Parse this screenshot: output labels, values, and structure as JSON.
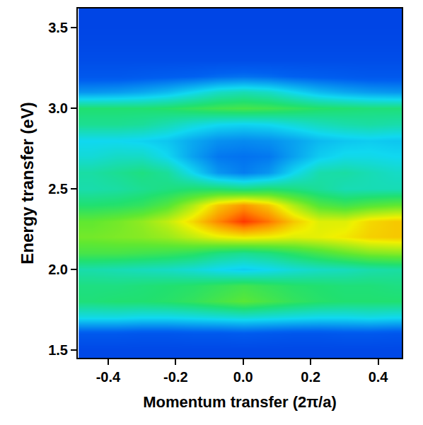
{
  "chart_data": {
    "type": "heatmap",
    "x_label": "Momentum transfer (2π/a)",
    "y_label": "Energy transfer (eV)",
    "x": [
      -0.45,
      -0.375,
      -0.3,
      -0.225,
      -0.15,
      -0.075,
      0,
      0.075,
      0.15,
      0.225,
      0.3,
      0.375,
      0.45
    ],
    "y": [
      1.5,
      1.6,
      1.7,
      1.8,
      1.9,
      2.0,
      2.1,
      2.2,
      2.3,
      2.4,
      2.5,
      2.6,
      2.7,
      2.8,
      2.9,
      3.0,
      3.1,
      3.2,
      3.3,
      3.4,
      3.5,
      3.6
    ],
    "z": [
      [
        0.6,
        0.6,
        0.6,
        0.6,
        0.6,
        0.6,
        0.6,
        0.6,
        0.6,
        0.6,
        0.6,
        0.6,
        0.6
      ],
      [
        1.2,
        1.2,
        1.1,
        1.1,
        1.2,
        1.2,
        1.3,
        1.2,
        1.1,
        1.1,
        1.2,
        1.2,
        1.1
      ],
      [
        3.6,
        3.6,
        3.5,
        3.5,
        3.6,
        3.7,
        3.8,
        3.7,
        3.6,
        3.5,
        3.5,
        3.6,
        3.5
      ],
      [
        4.9,
        5.0,
        5.0,
        5.1,
        5.3,
        5.6,
        5.9,
        5.6,
        5.3,
        5.1,
        5.0,
        5.0,
        5.0
      ],
      [
        4.8,
        4.8,
        4.9,
        5.0,
        5.1,
        5.3,
        5.5,
        5.3,
        5.1,
        5.0,
        4.9,
        4.9,
        4.8
      ],
      [
        4.3,
        4.2,
        4.1,
        4.0,
        3.8,
        3.5,
        3.3,
        3.5,
        3.8,
        4.0,
        4.1,
        4.3,
        4.4
      ],
      [
        5.6,
        5.6,
        5.5,
        5.4,
        5.2,
        4.8,
        4.6,
        4.8,
        5.2,
        5.6,
        6.0,
        6.3,
        6.4
      ],
      [
        6.2,
        6.3,
        6.4,
        6.6,
        7.0,
        7.4,
        7.6,
        7.5,
        7.3,
        7.4,
        7.6,
        7.9,
        8.0
      ],
      [
        6.0,
        6.2,
        6.5,
        7.0,
        7.8,
        8.8,
        9.6,
        9.0,
        8.0,
        7.3,
        7.3,
        7.8,
        8.0
      ],
      [
        5.0,
        5.1,
        5.3,
        5.8,
        6.8,
        8.0,
        8.6,
        8.0,
        6.8,
        5.8,
        5.5,
        5.8,
        6.0
      ],
      [
        4.3,
        4.4,
        4.6,
        4.8,
        5.0,
        5.0,
        4.8,
        5.0,
        4.8,
        4.5,
        4.2,
        4.2,
        4.2
      ],
      [
        4.4,
        4.6,
        4.8,
        4.5,
        3.5,
        2.4,
        2.0,
        2.4,
        3.5,
        4.3,
        4.4,
        4.2,
        4.0
      ],
      [
        3.8,
        4.0,
        4.0,
        3.5,
        2.6,
        1.9,
        1.8,
        1.9,
        2.6,
        3.3,
        3.6,
        3.6,
        3.5
      ],
      [
        3.5,
        3.5,
        3.4,
        3.2,
        2.7,
        2.3,
        2.2,
        2.3,
        2.6,
        3.0,
        3.2,
        3.3,
        3.2
      ],
      [
        4.6,
        4.6,
        4.5,
        4.2,
        3.8,
        3.5,
        3.4,
        3.5,
        3.8,
        4.1,
        4.3,
        4.4,
        4.3
      ],
      [
        5.0,
        5.0,
        5.0,
        5.1,
        5.3,
        5.5,
        5.6,
        5.5,
        5.3,
        5.1,
        5.0,
        4.9,
        4.9
      ],
      [
        2.4,
        2.5,
        2.7,
        3.0,
        3.5,
        4.0,
        4.2,
        4.0,
        3.5,
        3.0,
        2.7,
        2.5,
        2.4
      ],
      [
        1.2,
        1.2,
        1.3,
        1.4,
        1.5,
        1.7,
        1.8,
        1.7,
        1.5,
        1.4,
        1.3,
        1.2,
        1.2
      ],
      [
        0.8,
        0.8,
        0.8,
        0.8,
        0.8,
        0.8,
        0.8,
        0.8,
        0.8,
        0.8,
        0.8,
        0.8,
        0.8
      ],
      [
        0.6,
        0.6,
        0.6,
        0.6,
        0.6,
        0.6,
        0.6,
        0.6,
        0.6,
        0.6,
        0.6,
        0.6,
        0.6
      ],
      [
        0.5,
        0.5,
        0.5,
        0.5,
        0.5,
        0.5,
        0.5,
        0.5,
        0.5,
        0.5,
        0.5,
        0.5,
        0.5
      ],
      [
        0.5,
        0.5,
        0.5,
        0.5,
        0.5,
        0.5,
        0.5,
        0.5,
        0.5,
        0.5,
        0.5,
        0.5,
        0.5
      ]
    ],
    "zlim": [
      0,
      10
    ],
    "xlim": [
      -0.49,
      0.47
    ],
    "ylim": [
      1.45,
      3.62
    ],
    "xticks": [
      -0.4,
      -0.2,
      {
        "value": 0,
        "label": "0.0"
      },
      0.2,
      0.4
    ],
    "yticks": [
      1.5,
      {
        "value": 2,
        "label": "2.0"
      },
      2.5,
      {
        "value": 3,
        "label": "3.0"
      },
      3.5
    ]
  }
}
